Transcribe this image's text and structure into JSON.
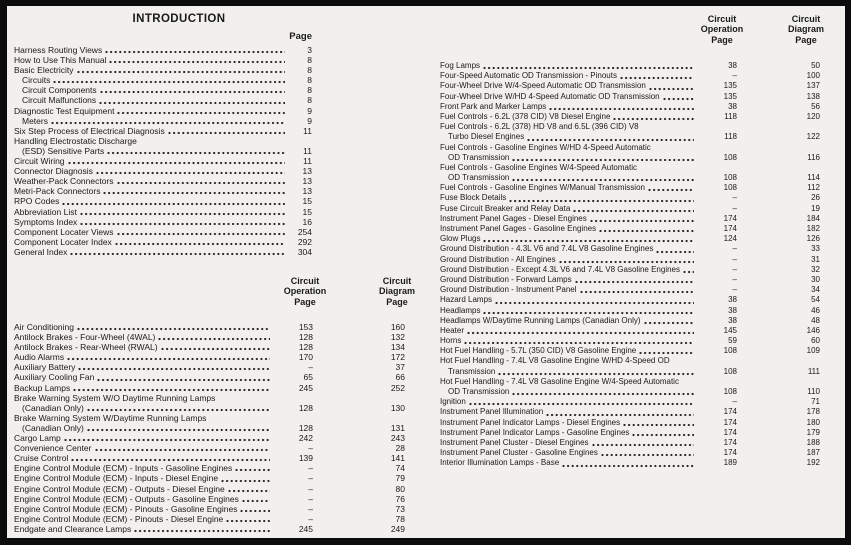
{
  "intro": {
    "title": "INTRODUCTION",
    "page_header": "Page",
    "items": [
      {
        "label": "Harness Routing Views",
        "page": "3"
      },
      {
        "label": "How to Use This Manual",
        "page": "8"
      },
      {
        "label": "Basic Electricity",
        "page": "8"
      },
      {
        "label": "Circuits",
        "page": "8",
        "indent": 1
      },
      {
        "label": "Circuit Components",
        "page": "8",
        "indent": 1
      },
      {
        "label": "Circuit Malfunctions",
        "page": "8",
        "indent": 1
      },
      {
        "label": "Diagnostic Test Equipment",
        "page": "9"
      },
      {
        "label": "Meters",
        "page": "9",
        "indent": 1
      },
      {
        "label": "Six Step Process of Electrical Diagnosis",
        "page": "11"
      },
      {
        "label": "Handling Electrostatic Discharge",
        "page": null
      },
      {
        "label": "(ESD) Sensitive Parts",
        "page": "11",
        "indent": 1
      },
      {
        "label": "Circuit Wiring",
        "page": "11"
      },
      {
        "label": "Connector Diagnosis",
        "page": "13"
      },
      {
        "label": "Weather-Pack Connectors",
        "page": "13"
      },
      {
        "label": "Metri-Pack Connectors",
        "page": "13"
      },
      {
        "label": "RPO Codes",
        "page": "15"
      },
      {
        "label": "Abbreviation List",
        "page": "15"
      },
      {
        "label": "Symptoms Index",
        "page": "16"
      },
      {
        "label": "Component Locater Views",
        "page": "254"
      },
      {
        "label": "Component Locater Index",
        "page": "292"
      },
      {
        "label": "General Index",
        "page": "304"
      }
    ]
  },
  "left_section": {
    "header_operation": [
      "Circuit",
      "Operation",
      "Page"
    ],
    "header_diagram": [
      "Circuit",
      "Diagram",
      "Page"
    ],
    "rows": [
      {
        "label": "Air Conditioning",
        "op": "153",
        "diag": "160"
      },
      {
        "label": "Antilock Brakes - Four-Wheel (4WAL)",
        "op": "128",
        "diag": "132"
      },
      {
        "label": "Antilock Brakes - Rear-Wheel (RWAL)",
        "op": "128",
        "diag": "134"
      },
      {
        "label": "Audio Alarms",
        "op": "170",
        "diag": "172"
      },
      {
        "label": "Auxiliary Battery",
        "op": "–",
        "diag": "37"
      },
      {
        "label": "Auxiliary Cooling Fan",
        "op": "65",
        "diag": "66"
      },
      {
        "label": "Backup Lamps",
        "op": "245",
        "diag": "252"
      },
      {
        "label": "Brake Warning System W/O Daytime Running Lamps",
        "op": null,
        "diag": null
      },
      {
        "label": "(Canadian Only)",
        "op": "128",
        "diag": "130",
        "indent": 1
      },
      {
        "label": "Brake Warning System W/Daytime Running Lamps",
        "op": null,
        "diag": null
      },
      {
        "label": "(Canadian Only)",
        "op": "128",
        "diag": "131",
        "indent": 1
      },
      {
        "label": "Cargo Lamp",
        "op": "242",
        "diag": "243"
      },
      {
        "label": "Convenience Center",
        "op": "–",
        "diag": "28"
      },
      {
        "label": "Cruise Control",
        "op": "139",
        "diag": "141"
      },
      {
        "label": "Engine Control Module (ECM) - Inputs - Gasoline Engines",
        "op": "–",
        "diag": "74"
      },
      {
        "label": "Engine Control Module (ECM) - Inputs - Diesel Engine",
        "op": "–",
        "diag": "79"
      },
      {
        "label": "Engine Control Module (ECM) - Outputs - Diesel Engine",
        "op": "–",
        "diag": "80"
      },
      {
        "label": "Engine Control Module (ECM) - Outputs - Gasoline Engines",
        "op": "–",
        "diag": "76"
      },
      {
        "label": "Engine Control Module (ECM) - Pinouts - Gasoline Engines",
        "op": "–",
        "diag": "73"
      },
      {
        "label": "Engine Control Module (ECM) - Pinouts - Diesel Engine",
        "op": "–",
        "diag": "78"
      },
      {
        "label": "Endgate and Clearance Lamps",
        "op": "245",
        "diag": "249"
      }
    ]
  },
  "right_section": {
    "header_operation": [
      "Circuit",
      "Operation",
      "Page"
    ],
    "header_diagram": [
      "Circuit",
      "Diagram",
      "Page"
    ],
    "rows": [
      {
        "label": "Fog Lamps",
        "op": "38",
        "diag": "50"
      },
      {
        "label": "Four-Speed Automatic OD Transmission - Pinouts",
        "op": "–",
        "diag": "100"
      },
      {
        "label": "Four-Wheel Drive W/4-Speed Automatic OD Transmission",
        "op": "135",
        "diag": "137"
      },
      {
        "label": "Four-Wheel Drive W/HD 4-Speed Automatic OD Transmission",
        "op": "135",
        "diag": "138"
      },
      {
        "label": "Front Park and Marker Lamps",
        "op": "38",
        "diag": "56"
      },
      {
        "label": "Fuel Controls - 6.2L (378 CID) V8 Diesel Engine",
        "op": "118",
        "diag": "120"
      },
      {
        "label": "Fuel Controls - 6.2L (378) HD V8 and 6.5L (396 CID) V8",
        "op": null,
        "diag": null
      },
      {
        "label": "Turbo Diesel Engines",
        "op": "118",
        "diag": "122",
        "indent": 1
      },
      {
        "label": "Fuel Controls - Gasoline Engines W/HD 4-Speed Automatic",
        "op": null,
        "diag": null
      },
      {
        "label": "OD Transmission",
        "op": "108",
        "diag": "116",
        "indent": 1
      },
      {
        "label": "Fuel Controls - Gasoline Engines W/4-Speed Automatic",
        "op": null,
        "diag": null
      },
      {
        "label": "OD Transmission",
        "op": "108",
        "diag": "114",
        "indent": 1
      },
      {
        "label": "Fuel Controls - Gasoline Engines W/Manual Transmission",
        "op": "108",
        "diag": "112"
      },
      {
        "label": "Fuse Block Details",
        "op": "–",
        "diag": "26"
      },
      {
        "label": "Fuse Circuit Breaker and Relay Data",
        "op": "–",
        "diag": "19"
      },
      {
        "label": "Instrument Panel Gages - Diesel Engines",
        "op": "174",
        "diag": "184"
      },
      {
        "label": "Instrument Panel Gages - Gasoline Engines",
        "op": "174",
        "diag": "182"
      },
      {
        "label": "Glow Plugs",
        "op": "124",
        "diag": "126"
      },
      {
        "label": "Ground Distribution - 4.3L V6 and 7.4L V8 Gasoline Engines",
        "op": "–",
        "diag": "33"
      },
      {
        "label": "Ground Distribution - All Engines",
        "op": "–",
        "diag": "31"
      },
      {
        "label": "Ground Distribution - Except 4.3L V6 and 7.4L V8 Gasoline Engines",
        "op": "–",
        "diag": "32"
      },
      {
        "label": "Ground Distribution - Forward Lamps",
        "op": "–",
        "diag": "30"
      },
      {
        "label": "Ground Distribution - Instrument Panel",
        "op": "–",
        "diag": "34"
      },
      {
        "label": "Hazard Lamps",
        "op": "38",
        "diag": "54"
      },
      {
        "label": "Headlamps",
        "op": "38",
        "diag": "46"
      },
      {
        "label": "Headlamps W/Daytime Running Lamps (Canadian Only)",
        "op": "38",
        "diag": "48"
      },
      {
        "label": "Heater",
        "op": "145",
        "diag": "146"
      },
      {
        "label": "Horns",
        "op": "59",
        "diag": "60"
      },
      {
        "label": "Hot Fuel Handling - 5.7L (350 CID) V8 Gasoline Engine",
        "op": "108",
        "diag": "109"
      },
      {
        "label": "Hot Fuel Handling - 7.4L V8 Gasoline Engine W/HD 4-Speed OD",
        "op": null,
        "diag": null
      },
      {
        "label": "Transmission",
        "op": "108",
        "diag": "111",
        "indent": 1
      },
      {
        "label": "Hot Fuel Handling - 7.4L V8 Gasoline Engine W/4-Speed Automatic",
        "op": null,
        "diag": null
      },
      {
        "label": "OD Transmission",
        "op": "108",
        "diag": "110",
        "indent": 1
      },
      {
        "label": "Ignition",
        "op": "–",
        "diag": "71"
      },
      {
        "label": "Instrument Panel Illumination",
        "op": "174",
        "diag": "178"
      },
      {
        "label": "Instrument Panel Indicator Lamps - Diesel Engines",
        "op": "174",
        "diag": "180"
      },
      {
        "label": "Instrument Panel Indicator Lamps - Gasoline Engines",
        "op": "174",
        "diag": "179"
      },
      {
        "label": "Instrument Panel Cluster - Diesel Engines",
        "op": "174",
        "diag": "188"
      },
      {
        "label": "Instrument Panel Cluster - Gasoline Engines",
        "op": "174",
        "diag": "187"
      },
      {
        "label": "Interior Illumination Lamps - Base",
        "op": "189",
        "diag": "192"
      }
    ]
  }
}
